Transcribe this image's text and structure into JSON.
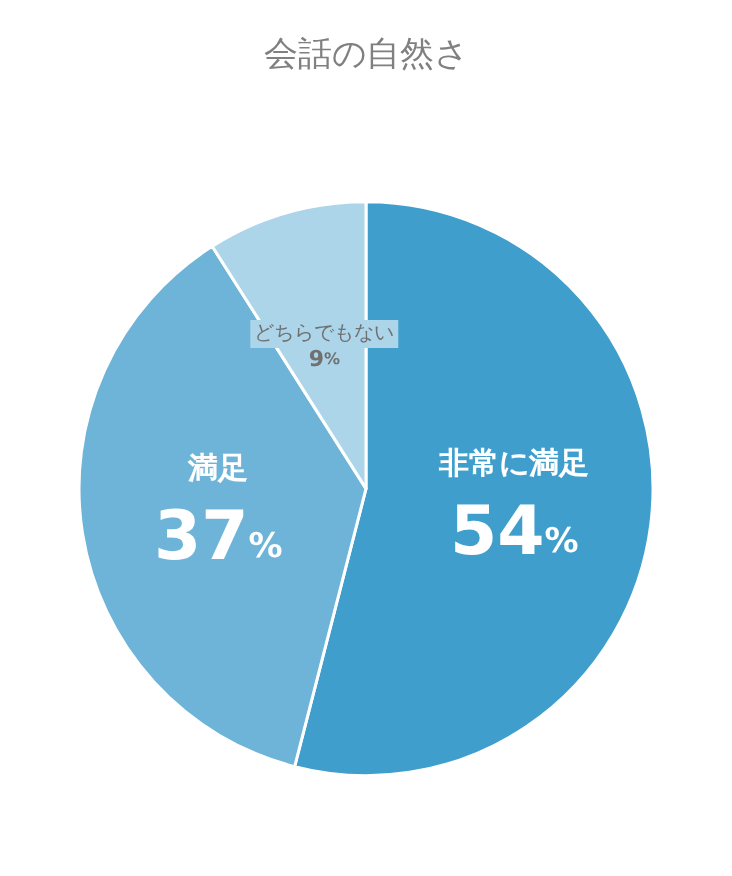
{
  "chart_data": {
    "type": "pie",
    "title": "会話の自然さ",
    "categories": [
      "非常に満足",
      "満足",
      "どちらでもない"
    ],
    "values": [
      54,
      37,
      9
    ],
    "value_labels": [
      "54%",
      "37%",
      "9%"
    ],
    "colors": [
      "#3f9ecb",
      "#6db4d8",
      "#acd5ea"
    ],
    "legend": false
  }
}
